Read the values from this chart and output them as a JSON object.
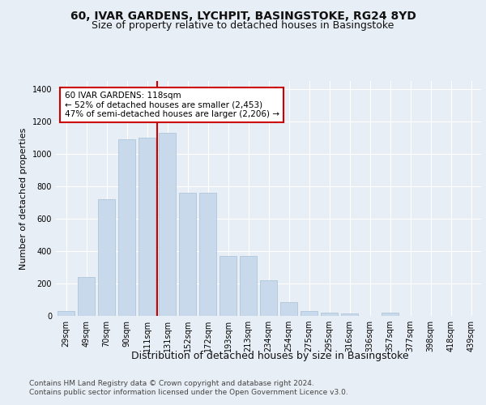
{
  "title1": "60, IVAR GARDENS, LYCHPIT, BASINGSTOKE, RG24 8YD",
  "title2": "Size of property relative to detached houses in Basingstoke",
  "xlabel": "Distribution of detached houses by size in Basingstoke",
  "ylabel": "Number of detached properties",
  "categories": [
    "29sqm",
    "49sqm",
    "70sqm",
    "90sqm",
    "111sqm",
    "131sqm",
    "152sqm",
    "172sqm",
    "193sqm",
    "213sqm",
    "234sqm",
    "254sqm",
    "275sqm",
    "295sqm",
    "316sqm",
    "336sqm",
    "357sqm",
    "377sqm",
    "398sqm",
    "418sqm",
    "439sqm"
  ],
  "values": [
    30,
    240,
    720,
    1090,
    1100,
    1130,
    760,
    760,
    370,
    370,
    220,
    85,
    30,
    20,
    15,
    0,
    20,
    0,
    0,
    0,
    0
  ],
  "bar_color": "#c8d9eb",
  "bar_edge_color": "#a8c0d8",
  "vline_color": "#cc0000",
  "annotation_text": "60 IVAR GARDENS: 118sqm\n← 52% of detached houses are smaller (2,453)\n47% of semi-detached houses are larger (2,206) →",
  "annotation_box_color": "#ffffff",
  "annotation_box_edge": "#cc0000",
  "ylim": [
    0,
    1450
  ],
  "yticks": [
    0,
    200,
    400,
    600,
    800,
    1000,
    1200,
    1400
  ],
  "background_color": "#e8eef5",
  "axes_bg_color": "#e8eef5",
  "footer1": "Contains HM Land Registry data © Crown copyright and database right 2024.",
  "footer2": "Contains public sector information licensed under the Open Government Licence v3.0.",
  "title1_fontsize": 10,
  "title2_fontsize": 9,
  "xlabel_fontsize": 9,
  "ylabel_fontsize": 8,
  "tick_fontsize": 7,
  "annotation_fontsize": 7.5,
  "footer_fontsize": 6.5
}
